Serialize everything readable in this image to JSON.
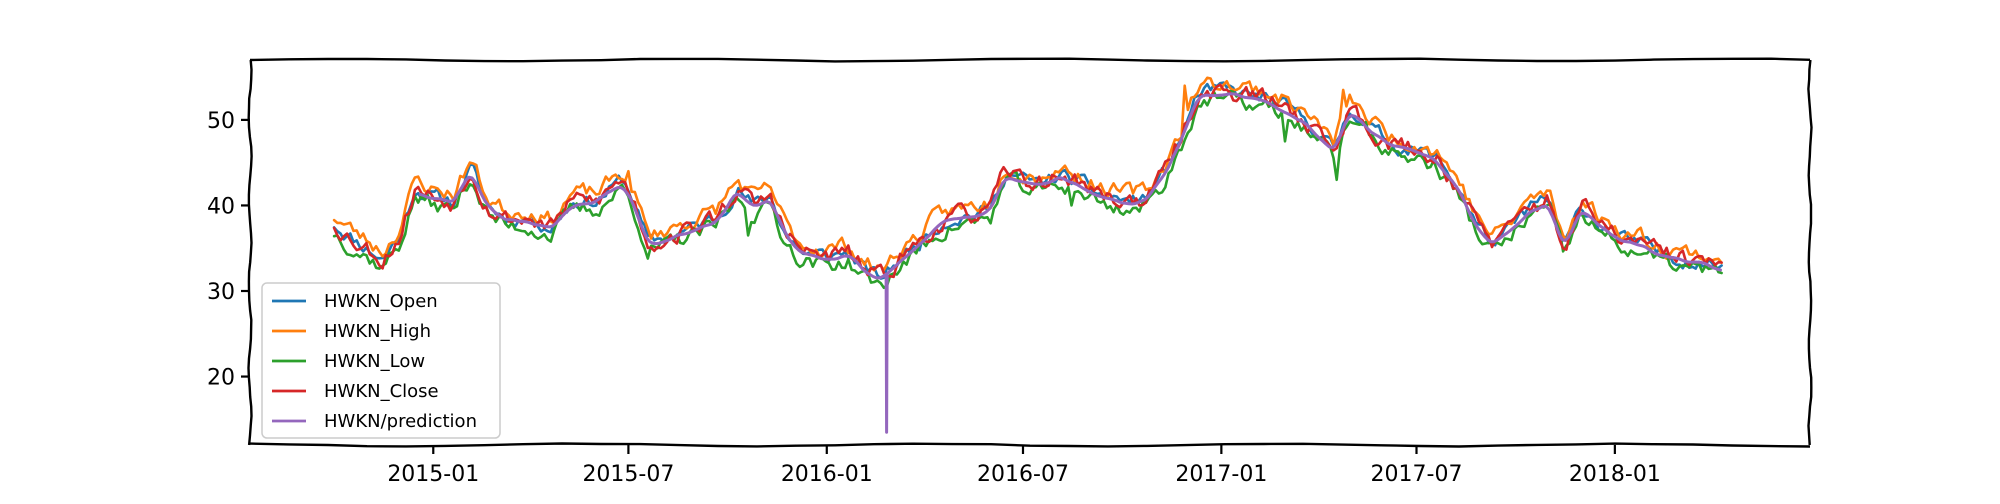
{
  "chart_data": {
    "type": "line",
    "title": "",
    "xlabel": "",
    "ylabel": "",
    "x_start": "2014-10-01",
    "x_end": "2018-04-10",
    "xlim": [
      "2014-07-15",
      "2018-07-01"
    ],
    "ylim": [
      12,
      57
    ],
    "x_ticks": [
      "2015-01-01",
      "2015-07-01",
      "2016-01-01",
      "2016-07-01",
      "2017-01-01",
      "2017-07-01",
      "2018-01-01"
    ],
    "x_tick_labels": [
      "2015-01",
      "2015-07",
      "2016-01",
      "2016-07",
      "2017-01",
      "2017-07",
      "2018-01"
    ],
    "y_ticks": [
      20,
      30,
      40,
      50
    ],
    "y_tick_labels": [
      "20",
      "30",
      "40",
      "50"
    ],
    "grid": false,
    "legend_position": "lower-left",
    "anomaly": {
      "date": "2016-02-25",
      "value": 13.5
    },
    "close_path": [
      [
        "2014-10-01",
        37.8
      ],
      [
        "2014-10-20",
        36.0
      ],
      [
        "2014-11-01",
        35.0
      ],
      [
        "2014-11-15",
        33.8
      ],
      [
        "2014-12-01",
        36.5
      ],
      [
        "2014-12-15",
        42.0
      ],
      [
        "2015-01-01",
        41.0
      ],
      [
        "2015-01-20",
        40.5
      ],
      [
        "2015-02-05",
        44.5
      ],
      [
        "2015-02-20",
        40.0
      ],
      [
        "2015-03-10",
        38.5
      ],
      [
        "2015-04-01",
        38.5
      ],
      [
        "2015-04-20",
        37.5
      ],
      [
        "2015-05-10",
        40.5
      ],
      [
        "2015-06-01",
        40.5
      ],
      [
        "2015-06-25",
        43.0
      ],
      [
        "2015-07-05",
        41.0
      ],
      [
        "2015-07-20",
        35.5
      ],
      [
        "2015-08-10",
        36.5
      ],
      [
        "2015-09-01",
        37.5
      ],
      [
        "2015-09-20",
        38.5
      ],
      [
        "2015-10-10",
        42.0
      ],
      [
        "2015-10-25",
        40.0
      ],
      [
        "2015-11-10",
        41.0
      ],
      [
        "2015-11-25",
        36.5
      ],
      [
        "2015-12-10",
        34.5
      ],
      [
        "2016-01-01",
        34.0
      ],
      [
        "2016-01-20",
        34.5
      ],
      [
        "2016-02-05",
        32.5
      ],
      [
        "2016-02-20",
        31.5
      ],
      [
        "2016-03-10",
        34.0
      ],
      [
        "2016-03-25",
        35.5
      ],
      [
        "2016-04-10",
        37.5
      ],
      [
        "2016-04-25",
        38.5
      ],
      [
        "2016-05-15",
        39.0
      ],
      [
        "2016-06-01",
        39.5
      ],
      [
        "2016-06-15",
        44.0
      ],
      [
        "2016-07-01",
        43.0
      ],
      [
        "2016-07-15",
        42.5
      ],
      [
        "2016-08-05",
        43.5
      ],
      [
        "2016-08-25",
        42.5
      ],
      [
        "2016-09-15",
        41.0
      ],
      [
        "2016-10-10",
        40.5
      ],
      [
        "2016-10-25",
        41.0
      ],
      [
        "2016-11-10",
        44.0
      ],
      [
        "2016-11-25",
        48.0
      ],
      [
        "2016-12-10",
        53.0
      ],
      [
        "2017-01-01",
        53.5
      ],
      [
        "2017-01-20",
        53.0
      ],
      [
        "2017-02-10",
        52.5
      ],
      [
        "2017-03-01",
        51.5
      ],
      [
        "2017-03-25",
        49.5
      ],
      [
        "2017-04-15",
        46.5
      ],
      [
        "2017-05-01",
        51.5
      ],
      [
        "2017-05-20",
        49.0
      ],
      [
        "2017-06-10",
        47.0
      ],
      [
        "2017-07-01",
        46.5
      ],
      [
        "2017-07-20",
        45.5
      ],
      [
        "2017-08-10",
        42.0
      ],
      [
        "2017-08-25",
        38.0
      ],
      [
        "2017-09-10",
        35.5
      ],
      [
        "2017-09-25",
        37.0
      ],
      [
        "2017-10-15",
        40.0
      ],
      [
        "2017-11-01",
        40.5
      ],
      [
        "2017-11-15",
        35.0
      ],
      [
        "2017-12-01",
        40.0
      ],
      [
        "2017-12-20",
        37.5
      ],
      [
        "2018-01-10",
        36.0
      ],
      [
        "2018-01-25",
        35.5
      ],
      [
        "2018-02-10",
        34.5
      ],
      [
        "2018-02-25",
        34.0
      ],
      [
        "2018-03-15",
        33.5
      ],
      [
        "2018-04-10",
        33.0
      ]
    ],
    "series": [
      {
        "name": "HWKN_Open",
        "color": "#1f77b4",
        "offset": 0.0,
        "noise": 0.7,
        "smooth": 1,
        "seed": 11,
        "spikes": []
      },
      {
        "name": "HWKN_High",
        "color": "#ff7f0e",
        "offset": 0.9,
        "noise": 0.8,
        "smooth": 1,
        "seed": 23,
        "spikes": [
          [
            "2015-07-02",
            44.0
          ],
          [
            "2016-11-28",
            54.0
          ],
          [
            "2017-04-25",
            53.5
          ]
        ]
      },
      {
        "name": "HWKN_Low",
        "color": "#2ca02c",
        "offset": -1.0,
        "noise": 0.8,
        "smooth": 1,
        "seed": 37,
        "spikes": [
          [
            "2015-07-20",
            33.8
          ],
          [
            "2015-10-20",
            36.5
          ],
          [
            "2016-08-15",
            40.0
          ],
          [
            "2017-04-18",
            43.0
          ],
          [
            "2017-03-01",
            47.5
          ]
        ]
      },
      {
        "name": "HWKN_Close",
        "color": "#d62728",
        "offset": 0.0,
        "noise": 0.9,
        "smooth": 1,
        "seed": 53,
        "spikes": []
      },
      {
        "name": "HWKN/prediction",
        "color": "#9467bd",
        "offset": -0.3,
        "noise": 0.25,
        "smooth": 3,
        "seed": 71,
        "spikes": [],
        "start": "2014-12-20"
      }
    ]
  }
}
